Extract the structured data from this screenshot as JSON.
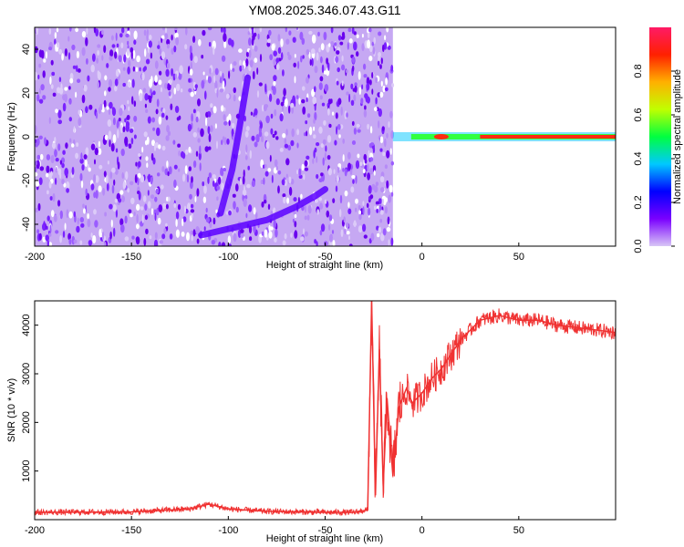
{
  "figure_title": "YM08.2025.346.07.43.G11",
  "chart_data": [
    {
      "type": "heatmap",
      "xlabel": "Height of straight line (km)",
      "ylabel": "Frequency (Hz)",
      "xlim": [
        -200,
        100
      ],
      "ylim": [
        -50,
        50
      ],
      "xticks": [
        -200,
        -150,
        -100,
        -50,
        0,
        50
      ],
      "yticks": [
        -40,
        -20,
        0,
        20,
        40
      ],
      "colorbar": {
        "label": "Normalized spectral amplitude",
        "range": [
          0,
          1
        ],
        "ticks": [
          "0.0",
          "0.2",
          "0.4",
          "0.6",
          "0.8"
        ],
        "colors": [
          "#d8c6f6",
          "#7a00ff",
          "#0000ff",
          "#00c8ff",
          "#00ff40",
          "#c0ff00",
          "#ffb000",
          "#ff2000",
          "#ff1a66"
        ]
      },
      "noise_region_x": [
        -200,
        -15
      ],
      "fringe_tail": {
        "x": [
          -114,
          -80,
          -65,
          -55,
          -50
        ],
        "y": [
          -45,
          -38,
          -32,
          -27,
          -24
        ]
      },
      "fringe_diagonal": {
        "x": [
          -104,
          -98,
          -95,
          -90
        ],
        "y": [
          -35,
          -15,
          0,
          27
        ]
      },
      "carrier_line": {
        "x": [
          -15,
          100
        ],
        "y": 0
      }
    },
    {
      "type": "line",
      "xlabel": "Height of straight line (km)",
      "ylabel": "SNR (10 * v/v)",
      "xlim": [
        -200,
        100
      ],
      "ylim": [
        0,
        4500
      ],
      "xticks": [
        -200,
        -150,
        -100,
        -50,
        0,
        50
      ],
      "yticks": [
        1000,
        2000,
        3000,
        4000
      ],
      "color": "#f03232",
      "series": [
        {
          "x": [
            -200,
            -150,
            -120,
            -110,
            -100,
            -80,
            -50,
            -35,
            -28,
            -26,
            -24,
            -22,
            -20,
            -18,
            -15,
            -12,
            -8,
            -5,
            0,
            5,
            10,
            15,
            20,
            25,
            30,
            40,
            50,
            60,
            70,
            80,
            90,
            100
          ],
          "y": [
            150,
            160,
            220,
            320,
            220,
            170,
            150,
            150,
            200,
            4500,
            500,
            3500,
            700,
            2500,
            900,
            2300,
            2700,
            2400,
            2600,
            2900,
            3100,
            3400,
            3700,
            3900,
            4100,
            4200,
            4100,
            4100,
            4000,
            3950,
            3900,
            3850
          ]
        }
      ]
    }
  ]
}
